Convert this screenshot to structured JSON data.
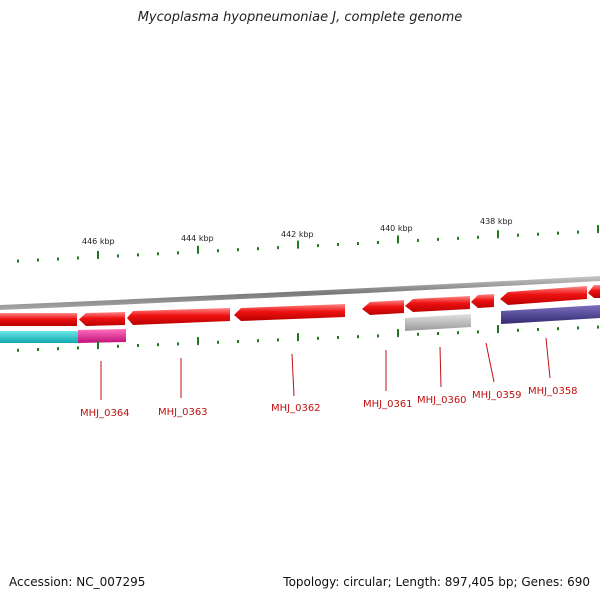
{
  "title": "Mycoplasma hyopneumoniae J, complete genome",
  "footer": {
    "accession": "Accession: NC_007295",
    "summary": "Topology: circular; Length: 897,405 bp; Genes: 690"
  },
  "scale": {
    "labels": [
      "446 kbp",
      "444 kbp",
      "442 kbp",
      "440 kbp",
      "438 kbp"
    ]
  },
  "genes": {
    "labels": [
      "MHJ_0364",
      "MHJ_0363",
      "MHJ_0362",
      "MHJ_0361",
      "MHJ_0360",
      "MHJ_0359",
      "MHJ_0358"
    ]
  },
  "colors": {
    "gene_forward": "#ee1111",
    "backbone": "#888888",
    "label_red": "#c01010",
    "tick_green": "#1f7a1f",
    "cog_cyan": "#19c6cc",
    "cog_magenta": "#e0208f",
    "cog_gray": "#b5b5b5",
    "cog_purple": "#4a3f8c"
  }
}
